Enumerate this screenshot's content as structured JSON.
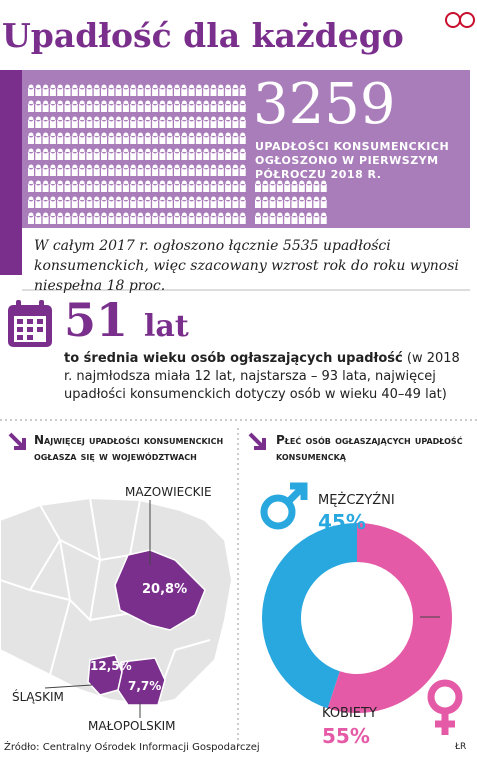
{
  "header": {
    "title": "Upadłość dla każdego"
  },
  "highlight": {
    "value": 3259,
    "text": "UPADŁOŚCI KONSUMENCKICH OGŁOSZONO W PIERWSZYM PÓŁROCZU 2018 R."
  },
  "note": "W całym 2017 r. ogłoszono łącznie 5535 upadłości konsumenckich, więc szacowany wzrost rok do roku wynosi niespełna 18 proc.",
  "age": {
    "value": 51,
    "unit": "lat",
    "lead": "to średnia wieku osób ogłaszających upadłość",
    "text": "(w 2018 r. najmłodsza miała 12 lat, najstarsza – 93 lata, najwięcej upadłości konsumenckich dotyczy osób w wieku 40–49 lat)"
  },
  "map": {
    "title": "Najwięcej upadłości konsumenckich ogłasza się w województwach",
    "regions": [
      {
        "name": "MAZOWIECKIE",
        "label": "20,8%"
      },
      {
        "name": "ŚLĄSKIM",
        "label": "12,5%"
      },
      {
        "name": "MAŁOPOLSKIM",
        "label": "7,7%"
      }
    ]
  },
  "chart_data": {
    "type": "donut",
    "title": "Płeć osób ogłaszających upadłość konsumencką",
    "categories": [
      "MĘŻCZYŹNI",
      "KOBIETY"
    ],
    "values": [
      45,
      55
    ],
    "value_labels": [
      "45%",
      "55%"
    ],
    "colors": [
      "#29a8df",
      "#e55aa7"
    ]
  },
  "footer": {
    "source": "Źródło: Centralny Ośrodek Informacji Gospodarczej",
    "credit": "ŁR"
  }
}
